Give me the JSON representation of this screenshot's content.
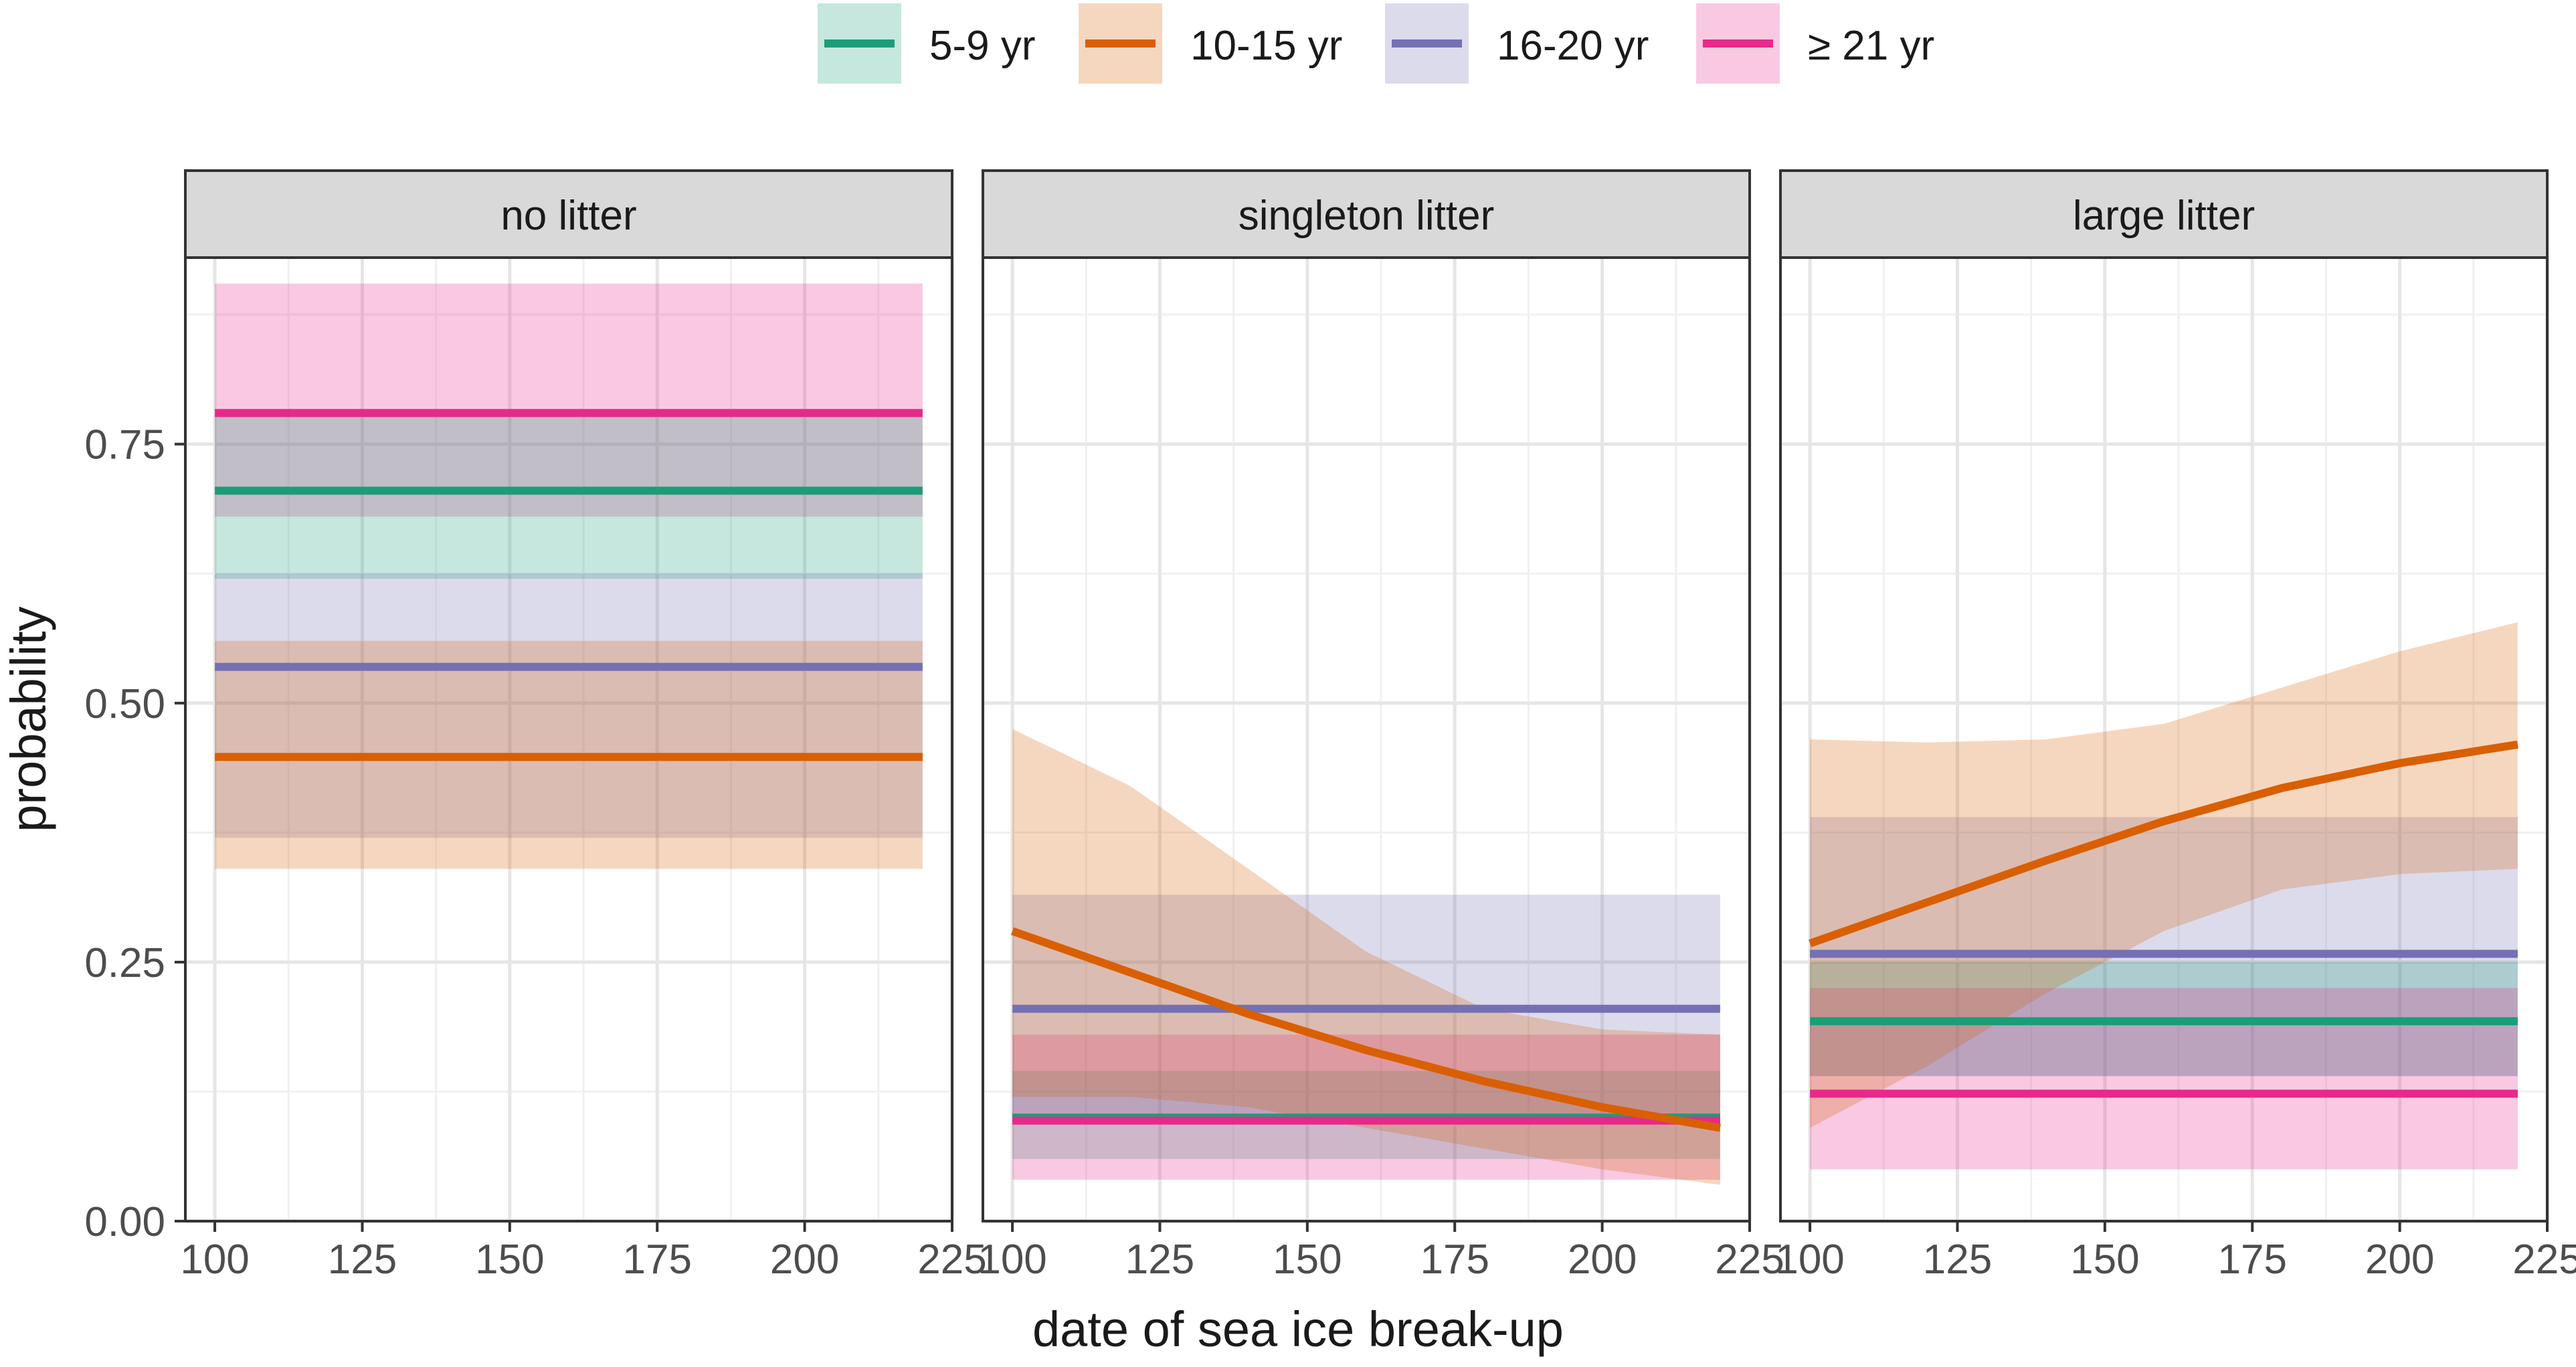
{
  "chart_data": {
    "type": "line",
    "xlabel": "date of sea ice break-up",
    "ylabel": "probability",
    "xlim": [
      95,
      225
    ],
    "ylim": [
      0.0,
      0.93
    ],
    "x_ticks": [
      100,
      125,
      150,
      175,
      200,
      225
    ],
    "x_tick_labels": [
      "100",
      "125",
      "150",
      "175",
      "200",
      "225"
    ],
    "y_ticks": [
      0.0,
      0.25,
      0.5,
      0.75
    ],
    "y_tick_labels": [
      "0.00",
      "0.25",
      "0.50",
      "0.75"
    ],
    "legend": {
      "placement": "top",
      "entries": [
        {
          "key": "a5",
          "label": "5-9 yr",
          "color": "#1b9e77"
        },
        {
          "key": "a10",
          "label": "10-15 yr",
          "color": "#d95f02"
        },
        {
          "key": "a16",
          "label": "16-20 yr",
          "color": "#7570b3"
        },
        {
          "key": "a21",
          "label": "≥ 21 yr",
          "color": "#e7298a"
        }
      ]
    },
    "panels": [
      {
        "key": "no",
        "title": "no litter",
        "series": [
          {
            "key": "a21",
            "x": [
              100,
              220
            ],
            "y": [
              0.78,
              0.78
            ],
            "lower": [
              0.68,
              0.68
            ],
            "upper": [
              0.905,
              0.905
            ]
          },
          {
            "key": "a5",
            "x": [
              100,
              220
            ],
            "y": [
              0.705,
              0.705
            ],
            "lower": [
              0.62,
              0.62
            ],
            "upper": [
              0.78,
              0.78
            ]
          },
          {
            "key": "a16",
            "x": [
              100,
              220
            ],
            "y": [
              0.535,
              0.535
            ],
            "lower": [
              0.37,
              0.37
            ],
            "upper": [
              0.625,
              0.625
            ]
          },
          {
            "key": "a10",
            "x": [
              100,
              220
            ],
            "y": [
              0.448,
              0.448
            ],
            "lower": [
              0.34,
              0.34
            ],
            "upper": [
              0.56,
              0.56
            ]
          }
        ]
      },
      {
        "key": "single",
        "title": "singleton litter",
        "series": [
          {
            "key": "a16",
            "x": [
              100,
              220
            ],
            "y": [
              0.205,
              0.205
            ],
            "lower": [
              0.1,
              0.1
            ],
            "upper": [
              0.315,
              0.315
            ]
          },
          {
            "key": "a5",
            "x": [
              100,
              220
            ],
            "y": [
              0.1,
              0.1
            ],
            "lower": [
              0.06,
              0.06
            ],
            "upper": [
              0.145,
              0.145
            ]
          },
          {
            "key": "a21",
            "x": [
              100,
              220
            ],
            "y": [
              0.097,
              0.097
            ],
            "lower": [
              0.04,
              0.04
            ],
            "upper": [
              0.18,
              0.18
            ]
          },
          {
            "key": "a10",
            "x": [
              100,
              120,
              140,
              160,
              180,
              200,
              220
            ],
            "y": [
              0.28,
              0.24,
              0.2,
              0.165,
              0.135,
              0.11,
              0.09
            ],
            "lower": [
              0.12,
              0.12,
              0.11,
              0.09,
              0.07,
              0.05,
              0.035
            ],
            "upper": [
              0.475,
              0.42,
              0.34,
              0.26,
              0.205,
              0.185,
              0.18
            ]
          }
        ]
      },
      {
        "key": "large",
        "title": "large litter",
        "series": [
          {
            "key": "a16",
            "x": [
              100,
              220
            ],
            "y": [
              0.258,
              0.258
            ],
            "lower": [
              0.14,
              0.14
            ],
            "upper": [
              0.39,
              0.39
            ]
          },
          {
            "key": "a5",
            "x": [
              100,
              220
            ],
            "y": [
              0.193,
              0.193
            ],
            "lower": [
              0.14,
              0.14
            ],
            "upper": [
              0.25,
              0.25
            ]
          },
          {
            "key": "a21",
            "x": [
              100,
              220
            ],
            "y": [
              0.123,
              0.123
            ],
            "lower": [
              0.05,
              0.05
            ],
            "upper": [
              0.225,
              0.225
            ]
          },
          {
            "key": "a10",
            "x": [
              100,
              120,
              140,
              160,
              180,
              200,
              220
            ],
            "y": [
              0.268,
              0.308,
              0.348,
              0.386,
              0.418,
              0.442,
              0.46
            ],
            "lower": [
              0.09,
              0.15,
              0.22,
              0.28,
              0.32,
              0.335,
              0.34
            ],
            "upper": [
              0.465,
              0.462,
              0.465,
              0.48,
              0.515,
              0.55,
              0.578
            ]
          }
        ]
      }
    ]
  }
}
